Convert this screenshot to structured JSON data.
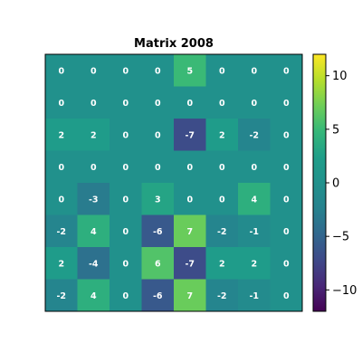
{
  "chart_data": {
    "type": "heatmap",
    "title": "Matrix 2008",
    "xlabel": "",
    "ylabel": "",
    "matrix": [
      [
        0,
        0,
        0,
        0,
        5,
        0,
        0,
        0
      ],
      [
        0,
        0,
        0,
        0,
        0,
        0,
        0,
        0
      ],
      [
        2,
        2,
        0,
        0,
        -7,
        2,
        -2,
        0
      ],
      [
        0,
        0,
        0,
        0,
        0,
        0,
        0,
        0
      ],
      [
        0,
        -3,
        0,
        3,
        0,
        0,
        4,
        0
      ],
      [
        -2,
        4,
        0,
        -6,
        7,
        -2,
        -1,
        0
      ],
      [
        2,
        -4,
        0,
        6,
        -7,
        2,
        2,
        0
      ],
      [
        -2,
        4,
        0,
        -6,
        7,
        -2,
        -1,
        0
      ]
    ],
    "colormap": "viridis",
    "vmin": -12,
    "vmax": 12,
    "show_values": true,
    "grid": false,
    "colorbar": {
      "ticks": [
        -10,
        -5,
        0,
        5,
        10
      ],
      "tick_labels": [
        "−10",
        "−5",
        "0",
        "5",
        "10"
      ]
    }
  }
}
